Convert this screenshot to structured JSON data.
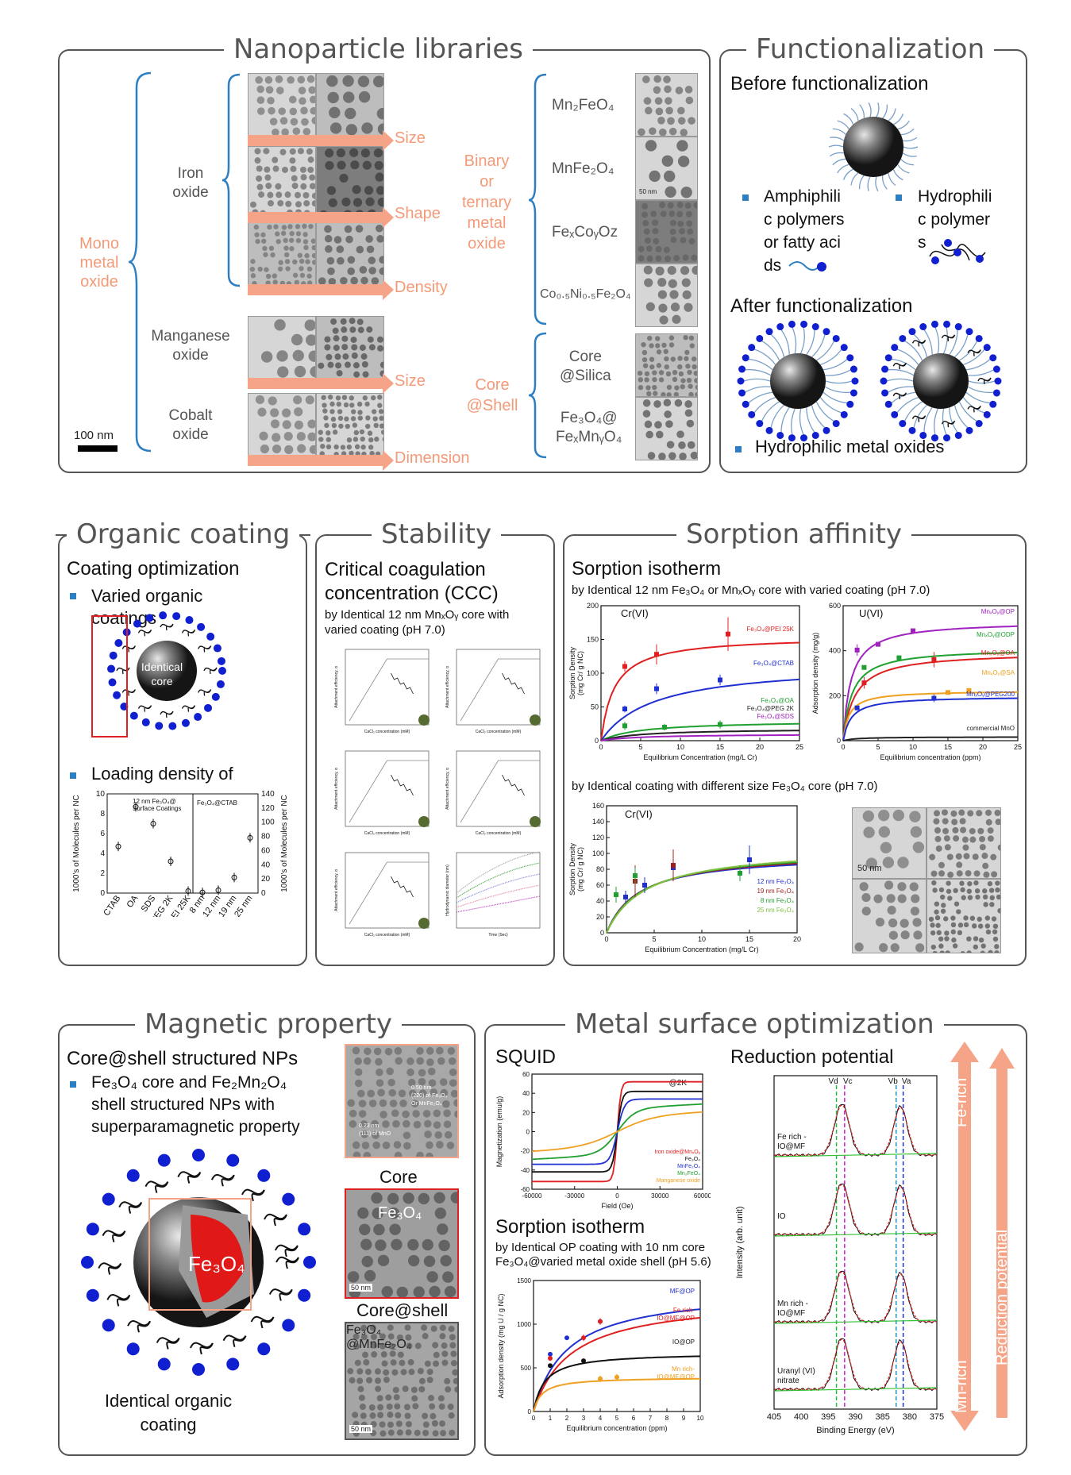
{
  "titles": {
    "libraries": "Nanoparticle libraries",
    "functionalization": "Functionalization",
    "organic": "Organic coating",
    "stability": "Stability",
    "sorption": "Sorption affinity",
    "magnetic": "Magnetic property",
    "metal": "Metal surface optimization"
  },
  "libraries": {
    "mono_metal_oxide": [
      "Mono",
      "metal",
      "oxide"
    ],
    "iron_oxide": [
      "Iron",
      "oxide"
    ],
    "manganese_oxide": [
      "Manganese",
      "oxide"
    ],
    "cobalt_oxide": [
      "Cobalt",
      "oxide"
    ],
    "arrows": [
      "Size",
      "Shape",
      "Density",
      "Size",
      "Dimension"
    ],
    "scale_bar": "100 nm",
    "binary": [
      "Binary",
      "or",
      "ternary",
      "metal",
      "oxide"
    ],
    "core_shell": [
      "Core",
      "@Shell"
    ],
    "formulas": {
      "mn2feo4": "Mn₂FeO₄",
      "mnfe2o4": "MnFe₂O₄",
      "fexcoyoz": "FeₓCoᵧOz",
      "coni": "Co₀.₅Ni₀.₅Fe₂O₄",
      "core_silica": [
        "Core",
        "@Silica"
      ],
      "fe3o4_fexmnyo4": [
        "Fe₃O₄@",
        "FeₓMnᵧO₄"
      ]
    },
    "tem_scale": "50 nm"
  },
  "functionalization": {
    "before": "Before functionalization",
    "amphiphilic": [
      "Amphiphili",
      "c polymers",
      "or fatty aci",
      "ds"
    ],
    "hydrophilic_polymer": [
      "Hydrophili",
      "c polymer",
      "s"
    ],
    "after": "After functionalization",
    "hydrophilic_metal_oxides": "Hydrophilic metal oxides"
  },
  "organic": {
    "heading": "Coating optimization",
    "bullet1": [
      "Varied organic",
      "coatings"
    ],
    "core_label": [
      "Identical",
      "core"
    ],
    "bullet2": "Loading density of",
    "bullet2_cont": "...",
    "chart": {
      "left_ylabel": "1000's of Molecules per NC",
      "right_ylabel": "1000's of Molecules per NC",
      "legend_left": [
        "12 nm Fe₃O₄@",
        "Surface Coatings"
      ],
      "legend_right": "Fe₃O₄@CTAB",
      "left_ticks": [
        "0",
        "2",
        "4",
        "6",
        "8",
        "10"
      ],
      "right_ticks": [
        "0",
        "20",
        "40",
        "60",
        "80",
        "100",
        "120",
        "140"
      ],
      "left_categories": [
        "CTAB",
        "OA",
        "SDS",
        "PEG 2K",
        "PEI 25K"
      ],
      "left_values": [
        4.7,
        8.7,
        7.0,
        3.2,
        0.2
      ],
      "right_categories": [
        "8 nm",
        "12 nm",
        "19 nm",
        "25 nm"
      ],
      "right_values": [
        1,
        4,
        22,
        78
      ]
    }
  },
  "stability": {
    "heading": [
      "Critical coagulation",
      "concentration (CCC)"
    ],
    "sub": [
      "by Identical 12 nm MnₓOᵧ core with",
      "varied coating (pH 7.0)"
    ],
    "ylabel": "Attachment efficiency, α",
    "xlabel": "CaCl₂ concentration (mM)",
    "ylabel_last": "Hydrodynamic diameter (nm)",
    "xlabel_last": "Time (Sec)"
  },
  "sorption": {
    "heading": "Sorption isotherm",
    "sub1": "by Identical 12 nm Fe₃O₄ or MnₓOᵧ core with varied coating (pH 7.0)",
    "sub2": "by Identical coating with different size Fe₃O₄ core (pH 7.0)",
    "crvi_a": {
      "label": "Cr(VI)",
      "ylabel": [
        "Sorption Density",
        "(mg Cr/ g NC)"
      ],
      "xlabel": "Equilibrium Concentration (mg/L Cr)",
      "yticks": [
        "0",
        "50",
        "100",
        "150",
        "200"
      ],
      "xticks": [
        "0",
        "5",
        "10",
        "15",
        "20",
        "25"
      ],
      "series": [
        "Fe₃O₄@PEI 25K",
        "Fe₃O₄@CTAB",
        "Fe₃O₄@OA",
        "Fe₃O₄@PEG 2K",
        "Fe₃O₄@SDS"
      ],
      "colors": [
        "#e02020",
        "#2030d0",
        "#20a030",
        "#222222",
        "#a020c0"
      ]
    },
    "uvi": {
      "label": "U(VI)",
      "ylabel": "Adsorption density (mg/g)",
      "xlabel": "Equilibrium concentration (ppm)",
      "yticks": [
        "0",
        "200",
        "400",
        "600"
      ],
      "xticks": [
        "0",
        "5",
        "10",
        "15",
        "20",
        "25"
      ],
      "series": [
        "MnₓOᵧ@OP",
        "MnₓOᵧ@ODP",
        "MnₓOᵧ@OA",
        "MnₓOᵧ@SA",
        "MnₓOᵧ@PEG200",
        "commercial MnO"
      ],
      "colors": [
        "#a020c0",
        "#20a030",
        "#e02020",
        "#f0a020",
        "#2030d0",
        "#222222"
      ]
    },
    "crvi_b": {
      "label": "Cr(VI)",
      "ylabel": [
        "Sorption Density",
        "(mg Cr/ g NC)"
      ],
      "xlabel": "Equilibrium Concentration (mg/L Cr)",
      "yticks": [
        "0",
        "20",
        "40",
        "60",
        "80",
        "100",
        "120",
        "140",
        "160"
      ],
      "xticks": [
        "0",
        "5",
        "10",
        "15",
        "20"
      ],
      "series": [
        "12 nm Fe₃O₄",
        "19 nm Fe₃O₄",
        "8 nm Fe₃O₄",
        "25 nm Fe₃O₄"
      ],
      "colors": [
        "#2030d0",
        "#a02020",
        "#20a030",
        "#80c040"
      ]
    },
    "tem_scale": "50 nm"
  },
  "magnetic": {
    "heading": "Core@shell structured NPs",
    "bullet": [
      "Fe₃O₄ core and Fe₂Mn₂O₄",
      "shell structured NPs with",
      "superparamagnetic property"
    ],
    "core_formula": "Fe₃O₄",
    "coating_label": [
      "Identical organic",
      "coating"
    ],
    "hrtem_labels": [
      "0.50 nm",
      "(220) of Fe₃O₄",
      "Or MnFe₂O₄",
      "0.23 nm",
      "(111) of MnO"
    ],
    "core_label": "Core",
    "core_tem_formula": "Fe₃O₄",
    "coreshell_label": "Core@shell",
    "coreshell_tem_formula": [
      "Fe₃O₄",
      "@MnFe₂O₄"
    ],
    "scale": "50 nm"
  },
  "metal": {
    "squid": "SQUID",
    "squid_chart": {
      "label": "@2K",
      "ylabel": "Magnetization (emu/g)",
      "xlabel": "Field (Oe)",
      "yticks": [
        "-60",
        "-40",
        "-20",
        "0",
        "20",
        "40",
        "60"
      ],
      "xticks": [
        "-60000",
        "-30000",
        "0",
        "30000",
        "60000"
      ],
      "series": [
        "Iron oxide@MnₓOᵧ",
        "Fe₃O₄",
        "MnFe₂O₄",
        "Mn₂FeO₄",
        "Manganese oxide"
      ],
      "colors": [
        "#e02020",
        "#111111",
        "#2030d0",
        "#20a030",
        "#f0a020"
      ]
    },
    "sorption_heading": "Sorption isotherm",
    "sorption_sub": [
      "by Identical OP coating with 10 nm core",
      "Fe₃O₄@varied metal oxide shell (pH 5.6)"
    ],
    "sorption_chart": {
      "ylabel": "Adsorption density (mg U / g NC)",
      "xlabel": "Equilibrium concentration (ppm)",
      "yticks": [
        "0",
        "500",
        "1000",
        "1500"
      ],
      "xticks": [
        "0",
        "1",
        "2",
        "3",
        "4",
        "5",
        "6",
        "7",
        "8",
        "9",
        "10"
      ],
      "series": [
        "MF@OP",
        "Fe rich-\nIO@MF@OP",
        "IO@OP",
        "Mn rich-\nIO@MF@OP"
      ],
      "colors": [
        "#2030d0",
        "#e02020",
        "#111111",
        "#f0a020"
      ]
    },
    "reduction_heading": "Reduction potential",
    "xps": {
      "ylabel": "Intensity (arb. unit)",
      "xlabel": "Binding Energy (eV)",
      "xticks": [
        "405",
        "400",
        "395",
        "390",
        "385",
        "380",
        "375"
      ],
      "peaks": [
        "Vd",
        "Vc",
        "Vb",
        "Va"
      ],
      "samples": [
        "Fe rich -\nIO@MF",
        "IO",
        "Mn rich -\nIO@MF",
        "Uranyl (VI)\nnitrate"
      ]
    },
    "fe_rich": "Fe-rich",
    "mn_rich": "Mn-rich",
    "reduction_potential": "Reduction potential"
  }
}
